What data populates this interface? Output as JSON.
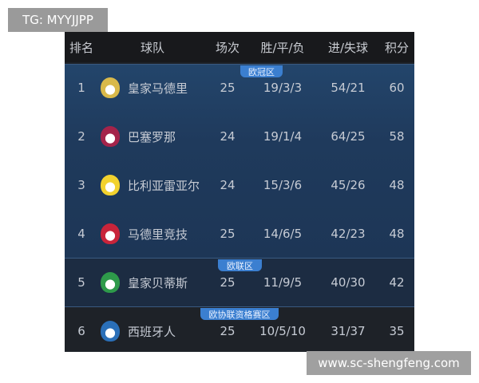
{
  "watermarks": {
    "top": "TG: MYYJJPP",
    "bottom": "www.sc-shengfeng.com"
  },
  "headers": [
    "排名",
    "球队",
    "场次",
    "胜/平/负",
    "进/失球",
    "积分"
  ],
  "sections": [
    {
      "label": "欧冠区",
      "color": "#1f3a5c"
    },
    {
      "label": "欧联区",
      "color": "#1c2c42"
    },
    {
      "label": "欧协联资格赛区",
      "color": "#1e2228"
    }
  ],
  "rows": [
    {
      "rank": "1",
      "team": "皇家马德里",
      "played": "25",
      "wdl": "19/3/3",
      "goals": "54/21",
      "points": "60",
      "crest": "real-madrid-crest-icon",
      "crest_color": "#d9b94a"
    },
    {
      "rank": "2",
      "team": "巴塞罗那",
      "played": "24",
      "wdl": "19/1/4",
      "goals": "64/25",
      "points": "58",
      "crest": "barcelona-crest-icon",
      "crest_color": "#a4234a"
    },
    {
      "rank": "3",
      "team": "比利亚雷亚尔",
      "played": "24",
      "wdl": "15/3/6",
      "goals": "45/26",
      "points": "48",
      "crest": "villarreal-crest-icon",
      "crest_color": "#f2d22e"
    },
    {
      "rank": "4",
      "team": "马德里竞技",
      "played": "25",
      "wdl": "14/6/5",
      "goals": "42/23",
      "points": "48",
      "crest": "atletico-madrid-crest-icon",
      "crest_color": "#c8243a"
    },
    {
      "rank": "5",
      "team": "皇家贝蒂斯",
      "played": "25",
      "wdl": "11/9/5",
      "goals": "40/30",
      "points": "42",
      "crest": "real-betis-crest-icon",
      "crest_color": "#2e9a4a"
    },
    {
      "rank": "6",
      "team": "西班牙人",
      "played": "25",
      "wdl": "10/5/10",
      "goals": "31/37",
      "points": "35",
      "crest": "espanyol-crest-icon",
      "crest_color": "#2a6fb8"
    }
  ]
}
